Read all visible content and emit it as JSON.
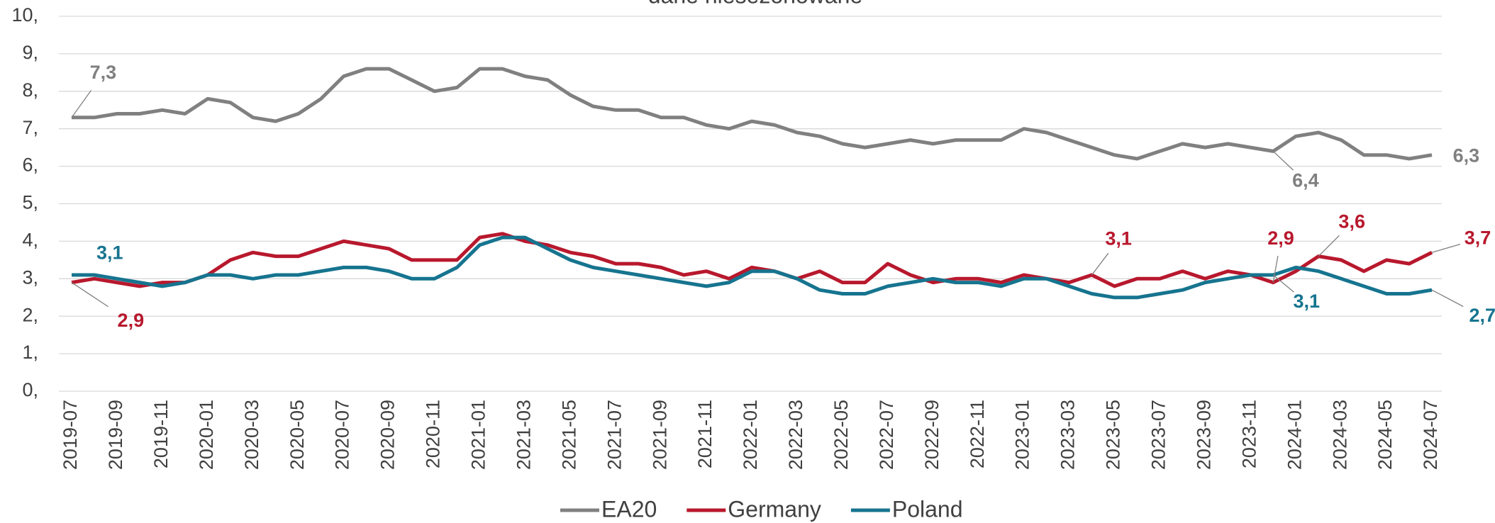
{
  "chart_data": {
    "type": "line",
    "title": "dane niesezonowane",
    "categories": [
      "2019-07",
      null,
      "2019-09",
      null,
      "2019-11",
      null,
      "2020-01",
      null,
      "2020-03",
      null,
      "2020-05",
      null,
      "2020-07",
      null,
      "2020-09",
      null,
      "2020-11",
      null,
      "2021-01",
      null,
      "2021-03",
      null,
      "2021-05",
      null,
      "2021-07",
      null,
      "2021-09",
      null,
      "2021-11",
      null,
      "2022-01",
      null,
      "2022-03",
      null,
      "2022-05",
      null,
      "2022-07",
      null,
      "2022-09",
      null,
      "2022-11",
      null,
      "2023-01",
      null,
      "2023-03",
      null,
      "2023-05",
      null,
      "2023-07",
      null,
      "2023-09",
      null,
      "2023-11",
      null,
      "2024-01",
      null,
      "2024-03",
      null,
      "2024-05",
      null,
      "2024-07"
    ],
    "series": [
      {
        "name": "EA20",
        "color": "#808080",
        "values": [
          7.3,
          7.3,
          7.4,
          7.4,
          7.5,
          7.4,
          7.8,
          7.7,
          7.3,
          7.2,
          7.4,
          7.8,
          8.4,
          8.6,
          8.6,
          8.3,
          8.0,
          8.1,
          8.6,
          8.6,
          8.4,
          8.3,
          7.9,
          7.6,
          7.5,
          7.5,
          7.3,
          7.3,
          7.1,
          7.0,
          7.2,
          7.1,
          6.9,
          6.8,
          6.6,
          6.5,
          6.6,
          6.7,
          6.6,
          6.7,
          6.7,
          6.7,
          7.0,
          6.9,
          6.7,
          6.5,
          6.3,
          6.2,
          6.4,
          6.6,
          6.5,
          6.6,
          6.5,
          6.4,
          6.8,
          6.9,
          6.7,
          6.3,
          6.3,
          6.2,
          6.3
        ],
        "value_labels": [
          "7,3",
          null,
          null,
          null,
          null,
          null,
          null,
          null,
          null,
          null,
          null,
          null,
          null,
          null,
          null,
          null,
          null,
          null,
          null,
          null,
          null,
          null,
          null,
          null,
          null,
          null,
          null,
          null,
          null,
          null,
          null,
          null,
          null,
          null,
          null,
          null,
          null,
          null,
          null,
          null,
          null,
          null,
          null,
          null,
          null,
          null,
          null,
          null,
          null,
          null,
          null,
          null,
          null,
          "6,4",
          null,
          null,
          null,
          null,
          null,
          null,
          "6,3"
        ]
      },
      {
        "name": "Germany",
        "color": "#b8182d",
        "values": [
          2.9,
          3.0,
          2.9,
          2.8,
          2.9,
          2.9,
          3.1,
          3.5,
          3.7,
          3.6,
          3.6,
          3.8,
          4.0,
          3.9,
          3.8,
          3.5,
          3.5,
          3.5,
          4.1,
          4.2,
          4.0,
          3.9,
          3.7,
          3.6,
          3.4,
          3.4,
          3.3,
          3.1,
          3.2,
          3.0,
          3.3,
          3.2,
          3.0,
          3.2,
          2.9,
          2.9,
          3.4,
          3.1,
          2.9,
          3.0,
          3.0,
          2.9,
          3.1,
          3.0,
          2.9,
          3.1,
          2.8,
          3.0,
          3.0,
          3.2,
          3.0,
          3.2,
          3.1,
          2.9,
          3.2,
          3.6,
          3.5,
          3.2,
          3.5,
          3.4,
          3.7
        ],
        "value_labels": [
          "2,9",
          null,
          null,
          null,
          null,
          null,
          null,
          null,
          null,
          null,
          null,
          null,
          null,
          null,
          null,
          null,
          null,
          null,
          null,
          null,
          null,
          null,
          null,
          null,
          null,
          null,
          null,
          null,
          null,
          null,
          null,
          null,
          null,
          null,
          null,
          null,
          null,
          null,
          null,
          null,
          null,
          null,
          null,
          null,
          null,
          "3,1",
          null,
          null,
          null,
          null,
          null,
          null,
          null,
          "2,9",
          null,
          "3,6",
          null,
          null,
          null,
          null,
          "3,7"
        ]
      },
      {
        "name": "Poland",
        "color": "#16748f",
        "values": [
          3.1,
          3.1,
          3.0,
          2.9,
          2.8,
          2.9,
          3.1,
          3.1,
          3.0,
          3.1,
          3.1,
          3.2,
          3.3,
          3.3,
          3.2,
          3.0,
          3.0,
          3.3,
          3.9,
          4.1,
          4.1,
          3.8,
          3.5,
          3.3,
          3.2,
          3.1,
          3.0,
          2.9,
          2.8,
          2.9,
          3.2,
          3.2,
          3.0,
          2.7,
          2.6,
          2.6,
          2.8,
          2.9,
          3.0,
          2.9,
          2.9,
          2.8,
          3.0,
          3.0,
          2.8,
          2.6,
          2.5,
          2.5,
          2.6,
          2.7,
          2.9,
          3.0,
          3.1,
          3.1,
          3.3,
          3.2,
          3.0,
          2.8,
          2.6,
          2.6,
          2.7
        ],
        "value_labels": [
          "3,1",
          null,
          null,
          null,
          null,
          null,
          null,
          null,
          null,
          null,
          null,
          null,
          null,
          null,
          null,
          null,
          null,
          null,
          null,
          null,
          null,
          null,
          null,
          null,
          null,
          null,
          null,
          null,
          null,
          null,
          null,
          null,
          null,
          null,
          null,
          null,
          null,
          null,
          null,
          null,
          null,
          null,
          null,
          null,
          null,
          null,
          null,
          null,
          null,
          null,
          null,
          null,
          null,
          "3,1",
          null,
          null,
          null,
          null,
          null,
          null,
          "2,7"
        ]
      }
    ],
    "ylim": [
      0,
      10
    ],
    "yticks": [
      {
        "value": 0,
        "label": "0,"
      },
      {
        "value": 1,
        "label": "1,"
      },
      {
        "value": 2,
        "label": "2,"
      },
      {
        "value": 3,
        "label": "3,"
      },
      {
        "value": 4,
        "label": "4,"
      },
      {
        "value": 5,
        "label": "5,"
      },
      {
        "value": 6,
        "label": "6,"
      },
      {
        "value": 7,
        "label": "7,"
      },
      {
        "value": 8,
        "label": "8,"
      },
      {
        "value": 9,
        "label": "9,"
      },
      {
        "value": 10,
        "label": "10,"
      }
    ],
    "grid": true,
    "legend": "bottom"
  }
}
